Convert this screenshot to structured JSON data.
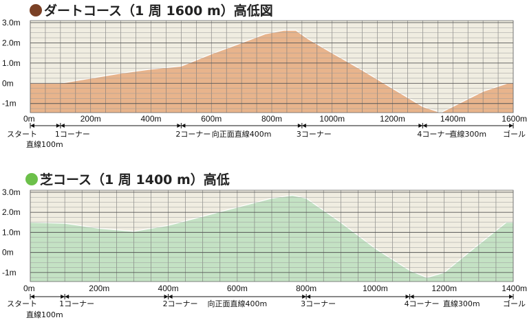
{
  "chart_data": [
    {
      "type": "area",
      "title": "ダートコース（1 周 1600 m）高低図",
      "marker_color": "#7a4025",
      "fill_color": "#e8b48c",
      "plot_bg": "#f0ede1",
      "y_tick_labels": [
        "3.0m",
        "2.0m",
        "1.0m",
        "0m",
        "-1m"
      ],
      "y_tick_values": [
        3,
        2,
        1,
        0,
        -1
      ],
      "ylim": [
        -1.45,
        3.1
      ],
      "xlim": [
        0,
        1600
      ],
      "x_tick_labels": [
        "0m",
        "200m",
        "400m",
        "600m",
        "800m",
        "1000m",
        "1200m",
        "1400m",
        "1600m"
      ],
      "x_tick_values": [
        0,
        200,
        400,
        600,
        800,
        1000,
        1200,
        1400,
        1600
      ],
      "x": [
        0,
        100,
        200,
        300,
        400,
        500,
        600,
        700,
        780,
        840,
        880,
        920,
        1000,
        1100,
        1200,
        1300,
        1360,
        1420,
        1500,
        1580,
        1600
      ],
      "y": [
        0,
        0,
        0.25,
        0.5,
        0.7,
        0.85,
        1.45,
        2.0,
        2.45,
        2.62,
        2.62,
        2.2,
        1.5,
        0.65,
        -0.25,
        -1.15,
        -1.45,
        -1.0,
        -0.4,
        0.0,
        0.0
      ],
      "markers": [
        {
          "x": 100,
          "label": "1コーナー"
        },
        {
          "x": 500,
          "label": "2コーナー"
        },
        {
          "x": 900,
          "label": "3コーナー"
        },
        {
          "x": 1300,
          "label": "4コーナー"
        }
      ],
      "annotations": [
        {
          "x": 0,
          "label": "スタート",
          "line2": "直線100m"
        },
        {
          "x": 700,
          "label": "向正面直線400m"
        },
        {
          "x": 1450,
          "label": "直線300m"
        },
        {
          "x": 1600,
          "label": "ゴール"
        }
      ]
    },
    {
      "type": "area",
      "title": "芝コース（1 周 1400 m）高低",
      "marker_color": "#6cc04a",
      "fill_color": "#c4e2c4",
      "plot_bg": "#f0ede1",
      "y_tick_labels": [
        "3.0m",
        "2.0m",
        "1.0m",
        "0m",
        "-1m"
      ],
      "y_tick_values": [
        3,
        2,
        1,
        0,
        -1
      ],
      "ylim": [
        -1.45,
        3.1
      ],
      "xlim": [
        0,
        1400
      ],
      "x_tick_labels": [
        "0m",
        "200m",
        "400m",
        "600m",
        "800m",
        "1000m",
        "1200m",
        "1400m"
      ],
      "x_tick_values": [
        0,
        200,
        400,
        600,
        800,
        1000,
        1200,
        1400
      ],
      "x": [
        0,
        100,
        200,
        300,
        400,
        500,
        600,
        700,
        760,
        800,
        900,
        1000,
        1100,
        1150,
        1200,
        1300,
        1380,
        1400
      ],
      "y": [
        1.5,
        1.45,
        1.2,
        1.05,
        1.35,
        1.8,
        2.25,
        2.7,
        2.85,
        2.7,
        1.5,
        0.2,
        -0.9,
        -1.25,
        -1.0,
        0.4,
        1.5,
        1.5
      ],
      "markers": [
        {
          "x": 100,
          "label": "1コーナー"
        },
        {
          "x": 400,
          "label": "2コーナー"
        },
        {
          "x": 800,
          "label": "3コーナー"
        },
        {
          "x": 1100,
          "label": "4コーナー"
        }
      ],
      "annotations": [
        {
          "x": 0,
          "label": "スタート",
          "line2": "直線100m"
        },
        {
          "x": 600,
          "label": "向正面直線400m"
        },
        {
          "x": 1250,
          "label": "直線300m"
        },
        {
          "x": 1400,
          "label": "ゴール"
        }
      ]
    }
  ]
}
